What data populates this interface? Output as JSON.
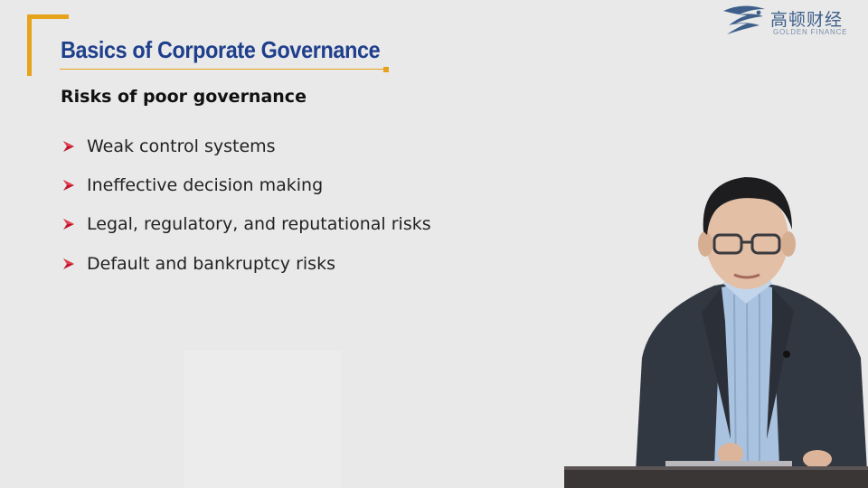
{
  "slide": {
    "title": "Basics of Corporate Governance",
    "subtitle": "Risks of poor governance",
    "bullets": [
      "Weak control systems",
      "Ineffective decision making",
      "Legal, regulatory, and reputational risks",
      "Default and bankruptcy risks"
    ]
  },
  "logo": {
    "name_cn": "高顿财经",
    "name_en": "GOLDEN FINANCE"
  },
  "colors": {
    "accent": "#e6a21a",
    "title": "#1f3f8c",
    "bullet_arrow": "#c0142b"
  },
  "icons": {
    "bullet": "arrow-bullet-icon",
    "logo": "golden-finance-logo-icon"
  }
}
